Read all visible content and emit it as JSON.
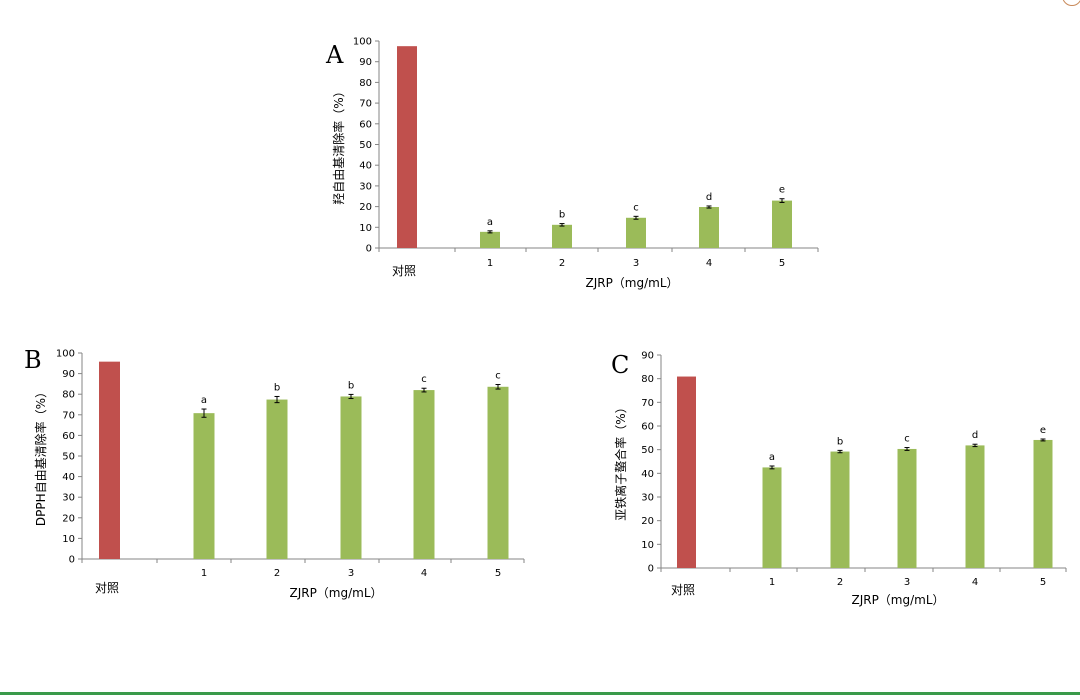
{
  "colors": {
    "control": "#C0504D",
    "sample": "#9BBB59",
    "axis": "#868686",
    "error": "#000000"
  },
  "chart_data": [
    {
      "type": "bar",
      "panel": "A",
      "ylabel": "羟自由基清除率（%）",
      "xlabel": "ZJRP（mg/mL）",
      "ylim": [
        0,
        100
      ],
      "yticks": [
        0,
        10,
        20,
        30,
        40,
        50,
        60,
        70,
        80,
        90,
        100
      ],
      "categories": [
        "对照",
        "1",
        "2",
        "3",
        "4",
        "5"
      ],
      "values": [
        97.5,
        7.8,
        11.2,
        14.6,
        19.8,
        22.9
      ],
      "errors": [
        0,
        0.5,
        0.6,
        0.7,
        0.5,
        0.9
      ],
      "labels": [
        "",
        "a",
        "b",
        "c",
        "d",
        "e"
      ],
      "grid": false
    },
    {
      "type": "bar",
      "panel": "B",
      "ylabel": "DPPH自由基清除率（%）",
      "xlabel": "ZJRP（mg/mL）",
      "ylim": [
        0,
        100
      ],
      "yticks": [
        0,
        10,
        20,
        30,
        40,
        50,
        60,
        70,
        80,
        90,
        100
      ],
      "categories": [
        "对照",
        "1",
        "2",
        "3",
        "4",
        "5"
      ],
      "values": [
        95.8,
        70.8,
        77.4,
        78.9,
        82.0,
        83.6
      ],
      "errors": [
        0,
        2.0,
        1.5,
        1.0,
        0.9,
        1.1
      ],
      "labels": [
        "",
        "a",
        "b",
        "b",
        "c",
        "c"
      ],
      "grid": false
    },
    {
      "type": "bar",
      "panel": "C",
      "ylabel": "亚铁离子螯合率（%）",
      "xlabel": "ZJRP（mg/mL）",
      "ylim": [
        0,
        90
      ],
      "yticks": [
        0,
        10,
        20,
        30,
        40,
        50,
        60,
        70,
        80,
        90
      ],
      "categories": [
        "对照",
        "1",
        "2",
        "3",
        "4",
        "5"
      ],
      "values": [
        80.9,
        42.5,
        49.2,
        50.3,
        51.8,
        54.1
      ],
      "errors": [
        0,
        0.6,
        0.5,
        0.6,
        0.5,
        0.4
      ],
      "labels": [
        "",
        "a",
        "b",
        "c",
        "d",
        "e"
      ],
      "grid": false
    }
  ]
}
